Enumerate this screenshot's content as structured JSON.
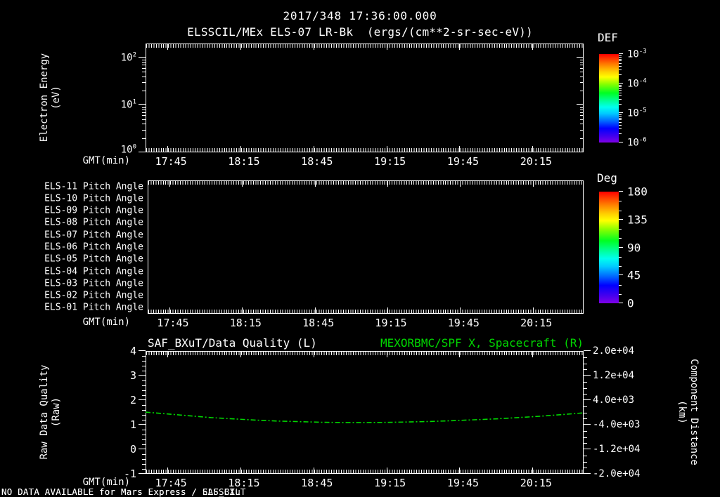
{
  "colors": {
    "background": "#000000",
    "foreground": "#ffffff",
    "green": "#00d800"
  },
  "title": {
    "line1": "2017/348 17:36:00.000",
    "line2": "ELSSCIL/MEx ELS-07 LR-Bk  (ergs/(cm**2-sr-sec-eV))"
  },
  "time_axis": {
    "label": "GMT(min)",
    "start": "17:36",
    "end": "20:36",
    "major_ticks": [
      "17:45",
      "18:15",
      "18:45",
      "19:15",
      "19:45",
      "20:15"
    ]
  },
  "panel_energy": {
    "ylabel_line1": "Electron Energy",
    "ylabel_line2": "(eV)",
    "ytick_exponents": [
      2,
      1,
      0
    ],
    "y_scale": "log"
  },
  "colorbar_def": {
    "title": "DEF",
    "tick_exponents": [
      -3,
      -4,
      -5,
      -6
    ],
    "scale": "log"
  },
  "panel_pitch": {
    "labels": [
      "ELS-11 Pitch Angle",
      "ELS-10 Pitch Angle",
      "ELS-09 Pitch Angle",
      "ELS-08 Pitch Angle",
      "ELS-07 Pitch Angle",
      "ELS-06 Pitch Angle",
      "ELS-05 Pitch Angle",
      "ELS-04 Pitch Angle",
      "ELS-03 Pitch Angle",
      "ELS-02 Pitch Angle",
      "ELS-01 Pitch Angle"
    ]
  },
  "colorbar_deg": {
    "title": "Deg",
    "ticks": [
      180,
      135,
      90,
      45,
      0
    ]
  },
  "panel_quality": {
    "title_left": "SAF_BXuT/Data Quality (L)",
    "title_right": "MEXORBMC/SPF X, Spacecraft (R)",
    "ylabel_left_line1": "Raw Data Quality",
    "ylabel_left_line2": "(Raw)",
    "yticks_left": [
      4,
      3,
      2,
      1,
      0,
      -1
    ],
    "ylabel_right_line1": "Component Distance",
    "ylabel_right_line2": "(km)",
    "yticks_right": [
      "2.0e+04",
      "1.2e+04",
      "4.0e+03",
      "-4.0e+03",
      "-1.2e+04",
      "-2.0e+04"
    ]
  },
  "no_data_messages": [
    "NO DATA AVAILABLE for Mars Express / ELSSCIL",
    "NO DATA AVAILABLE for Mars Express / SAF_BXuT"
  ],
  "chart_data": [
    {
      "type": "heatmap",
      "title": "ELSSCIL/MEx ELS-07 LR-Bk  (ergs/(cm**2-sr-sec-eV))",
      "xlabel": "GMT(min)",
      "ylabel": "Electron Energy (eV)",
      "x_range": [
        "17:36",
        "20:36"
      ],
      "x_ticks": [
        "17:45",
        "18:15",
        "18:45",
        "19:15",
        "19:45",
        "20:15"
      ],
      "y_scale": "log",
      "y_ticks": [
        100,
        10,
        1
      ],
      "colorbar": {
        "title": "DEF",
        "scale": "log",
        "ticks": [
          0.001,
          0.0001,
          1e-05,
          1e-06
        ]
      },
      "values": []
    },
    {
      "type": "heatmap",
      "categories": [
        "ELS-11 Pitch Angle",
        "ELS-10 Pitch Angle",
        "ELS-09 Pitch Angle",
        "ELS-08 Pitch Angle",
        "ELS-07 Pitch Angle",
        "ELS-06 Pitch Angle",
        "ELS-05 Pitch Angle",
        "ELS-04 Pitch Angle",
        "ELS-03 Pitch Angle",
        "ELS-02 Pitch Angle",
        "ELS-01 Pitch Angle"
      ],
      "xlabel": "GMT(min)",
      "x_range": [
        "17:36",
        "20:36"
      ],
      "x_ticks": [
        "17:45",
        "18:15",
        "18:45",
        "19:15",
        "19:45",
        "20:15"
      ],
      "colorbar": {
        "title": "Deg",
        "ticks": [
          180,
          135,
          90,
          45,
          0
        ]
      },
      "values": []
    },
    {
      "type": "line",
      "title_left": "SAF_BXuT/Data Quality (L)",
      "title_right": "MEXORBMC/SPF X, Spacecraft (R)",
      "xlabel": "GMT(min)",
      "x_range": [
        "17:36",
        "20:36"
      ],
      "x_ticks": [
        "17:45",
        "18:15",
        "18:45",
        "19:15",
        "19:45",
        "20:15"
      ],
      "ylabel_left": "Raw Data Quality (Raw)",
      "ylim_left": [
        -1,
        4
      ],
      "ylabel_right": "Component Distance (km)",
      "ylim_right": [
        -20000,
        20000
      ],
      "series": [
        {
          "name": "MEXORBMC/SPF X, Spacecraft",
          "axis": "right",
          "color": "#00d800",
          "style": "dash-dot",
          "points": [
            [
              "17:36",
              100
            ],
            [
              "17:45",
              -500
            ],
            [
              "17:54",
              -1100
            ],
            [
              "18:03",
              -1700
            ],
            [
              "18:12",
              -2100
            ],
            [
              "18:21",
              -2500
            ],
            [
              "18:30",
              -2800
            ],
            [
              "18:39",
              -3000
            ],
            [
              "18:48",
              -3200
            ],
            [
              "18:57",
              -3300
            ],
            [
              "19:06",
              -3300
            ],
            [
              "19:15",
              -3250
            ],
            [
              "19:24",
              -3100
            ],
            [
              "19:33",
              -2950
            ],
            [
              "19:42",
              -2700
            ],
            [
              "19:51",
              -2400
            ],
            [
              "20:00",
              -2100
            ],
            [
              "20:09",
              -1700
            ],
            [
              "20:18",
              -1250
            ],
            [
              "20:27",
              -700
            ],
            [
              "20:36",
              -150
            ]
          ]
        }
      ]
    }
  ]
}
